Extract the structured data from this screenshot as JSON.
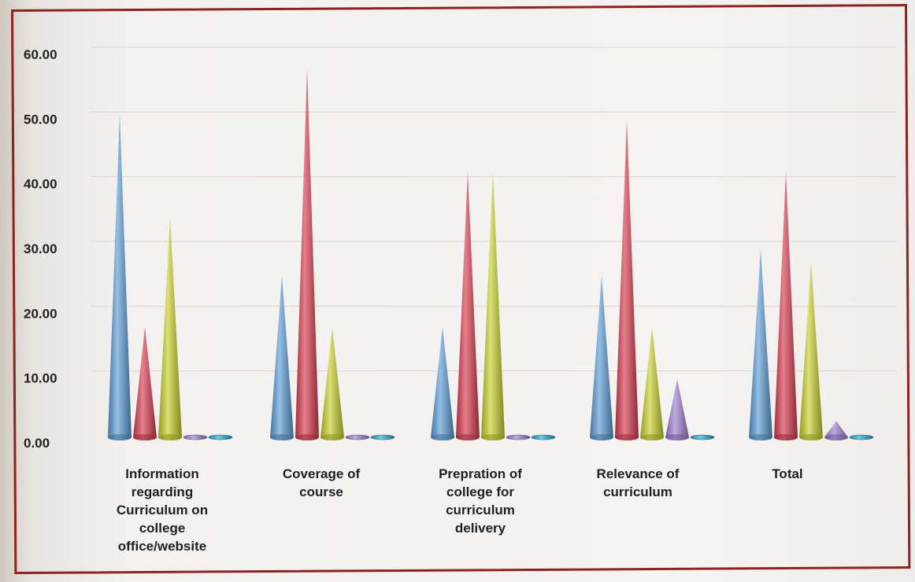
{
  "chart_data": {
    "type": "bar",
    "style": "3d-cone",
    "categories": [
      [
        "Information",
        "regarding",
        "Curriculum on",
        "college",
        "office/website"
      ],
      [
        "Coverage of",
        "course"
      ],
      [
        "Prepration of",
        "college for",
        "curriculum",
        "delivery"
      ],
      [
        "Relevance of",
        "curriculum"
      ],
      [
        "Total"
      ]
    ],
    "series": [
      {
        "color": "#5b9bd5",
        "values": [
          50,
          25,
          17,
          25,
          29
        ]
      },
      {
        "color": "#d93a4e",
        "values": [
          17,
          57,
          41,
          49,
          41
        ]
      },
      {
        "color": "#c7cf2a",
        "values": [
          34,
          17,
          41,
          17,
          27
        ]
      },
      {
        "color": "#9b7fd1",
        "values": [
          0.3,
          0.3,
          0.3,
          9,
          2.5
        ]
      },
      {
        "color": "#2aa7c9",
        "values": [
          0.3,
          0.3,
          0.3,
          0.3,
          0.3
        ]
      }
    ],
    "yticks": [
      "0.00",
      "10.00",
      "20.00",
      "30.00",
      "40.00",
      "50.00",
      "60.00"
    ],
    "ylim": [
      0,
      60
    ],
    "grid": true,
    "legend": "none",
    "title": "",
    "xlabel": "",
    "ylabel": ""
  }
}
